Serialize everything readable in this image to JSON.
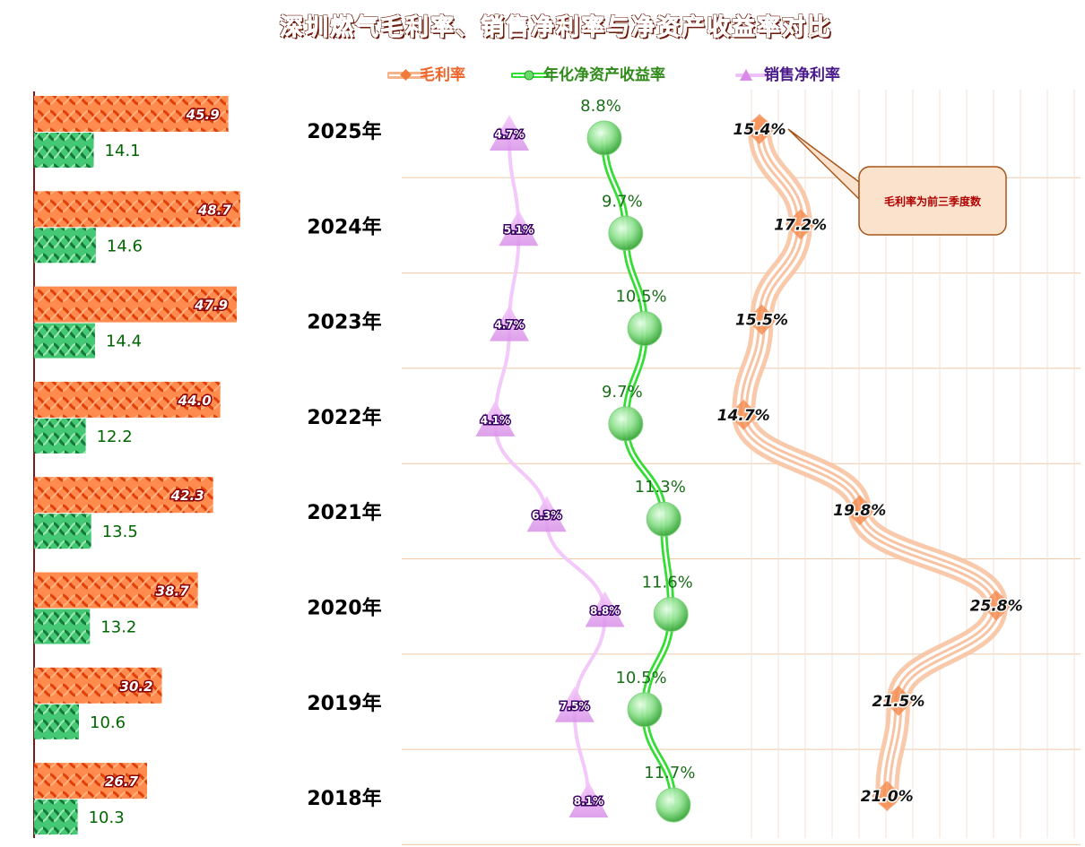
{
  "title": "深圳燃气毛利率、销售净利率与净资产收益率对比",
  "legend": [
    {
      "label": "毛利率",
      "color": "#f0642a"
    },
    {
      "label": "年化净资产收益率",
      "color": "#2f8a1a"
    },
    {
      "label": "销售净利率",
      "color": "#4a1a8a"
    }
  ],
  "callout": {
    "text": "毛利率为前三季度数"
  },
  "chart_data": {
    "type": "line",
    "categories": [
      "2025年",
      "2024年",
      "2023年",
      "2022年",
      "2021年",
      "2020年",
      "2019年",
      "2018年"
    ],
    "bars": {
      "series": [
        {
          "values": [
            45.9,
            48.7,
            47.9,
            44.0,
            42.3,
            38.7,
            30.2,
            26.7
          ],
          "color": "#ff8a4a"
        },
        {
          "values": [
            14.1,
            14.6,
            14.4,
            12.2,
            13.5,
            13.2,
            10.6,
            10.3
          ],
          "color": "#3cc46e"
        }
      ]
    },
    "series": [
      {
        "name": "毛利率",
        "values": [
          15.4,
          17.2,
          15.5,
          14.7,
          19.8,
          25.8,
          21.5,
          21.0
        ],
        "labels": [
          "15.4%",
          "17.2%",
          "15.5%",
          "14.7%",
          "19.8%",
          "25.8%",
          "21.5%",
          "21.0%"
        ],
        "color": "#f08a50"
      },
      {
        "name": "年化净资产收益率",
        "values": [
          8.8,
          9.7,
          10.5,
          9.7,
          11.3,
          11.6,
          10.5,
          11.7
        ],
        "labels": [
          "8.8%",
          "9.7%",
          "10.5%",
          "9.7%",
          "11.3%",
          "11.6%",
          "10.5%",
          "11.7%"
        ],
        "color": "#33dd33"
      },
      {
        "name": "销售净利率",
        "values": [
          4.7,
          5.1,
          4.7,
          4.1,
          6.3,
          8.8,
          7.5,
          8.1
        ],
        "labels": [
          "4.7%",
          "5.1%",
          "4.7%",
          "4.1%",
          "6.3%",
          "8.8%",
          "7.5%",
          "8.1%"
        ],
        "color": "#e090f0"
      }
    ]
  }
}
